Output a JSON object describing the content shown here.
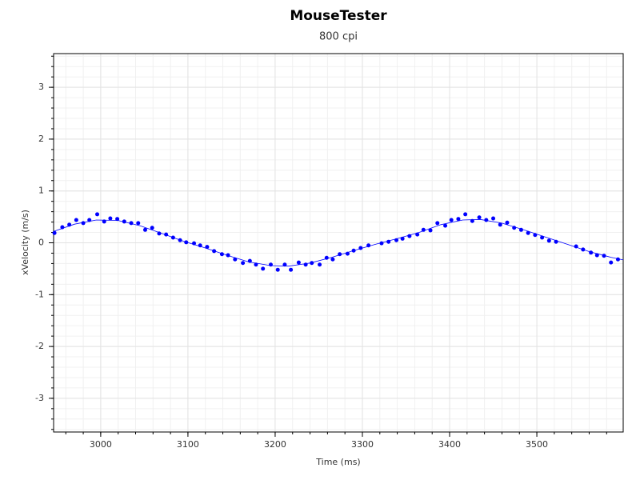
{
  "chart_data": {
    "type": "scatter",
    "title": "MouseTester",
    "subtitle": "800 cpi",
    "xlabel": "Time (ms)",
    "ylabel": "xVelocity (m/s)",
    "xlim": [
      2946,
      3599
    ],
    "ylim": [
      -3.65,
      3.65
    ],
    "xticks": [
      3000,
      3100,
      3200,
      3300,
      3400,
      3500
    ],
    "yticks": [
      -3,
      -2,
      -1,
      0,
      1,
      2,
      3
    ],
    "xminorstep": 20,
    "yminorstep": 0.2,
    "grid": true,
    "series": [
      {
        "type": "scatter",
        "color": "#0000ff",
        "x": [
          2947,
          2956,
          2964,
          2972,
          2980,
          2987,
          2996,
          3004,
          3011,
          3019,
          3027,
          3035,
          3043,
          3051,
          3059,
          3067,
          3075,
          3083,
          3091,
          3098,
          3107,
          3114,
          3122,
          3130,
          3139,
          3146,
          3154,
          3163,
          3171,
          3178,
          3186,
          3195,
          3203,
          3211,
          3218,
          3227,
          3235,
          3242,
          3251,
          3259,
          3266,
          3274,
          3283,
          3290,
          3298,
          3307,
          3322,
          3330,
          3339,
          3346,
          3354,
          3363,
          3370,
          3378,
          3386,
          3395,
          3402,
          3410,
          3418,
          3426,
          3434,
          3442,
          3450,
          3458,
          3466,
          3474,
          3482,
          3490,
          3498,
          3506,
          3514,
          3522,
          3545,
          3553,
          3562,
          3569,
          3577,
          3585,
          3593
        ],
        "values": [
          0.19,
          0.3,
          0.35,
          0.44,
          0.38,
          0.44,
          0.55,
          0.41,
          0.47,
          0.46,
          0.41,
          0.38,
          0.38,
          0.25,
          0.29,
          0.18,
          0.16,
          0.1,
          0.05,
          0.01,
          -0.01,
          -0.05,
          -0.08,
          -0.16,
          -0.22,
          -0.24,
          -0.32,
          -0.39,
          -0.35,
          -0.42,
          -0.5,
          -0.42,
          -0.52,
          -0.42,
          -0.52,
          -0.38,
          -0.42,
          -0.39,
          -0.42,
          -0.29,
          -0.32,
          -0.22,
          -0.21,
          -0.15,
          -0.1,
          -0.05,
          -0.01,
          0.02,
          0.05,
          0.08,
          0.13,
          0.16,
          0.25,
          0.24,
          0.38,
          0.33,
          0.44,
          0.46,
          0.55,
          0.42,
          0.49,
          0.44,
          0.47,
          0.35,
          0.39,
          0.29,
          0.25,
          0.19,
          0.15,
          0.1,
          0.04,
          0.02,
          -0.07,
          -0.13,
          -0.19,
          -0.24,
          -0.25,
          -0.38,
          -0.32
        ]
      },
      {
        "type": "line",
        "color": "#0000ff",
        "x": [
          2946,
          2970,
          2995,
          3020,
          3045,
          3070,
          3095,
          3120,
          3145,
          3170,
          3195,
          3215,
          3240,
          3265,
          3290,
          3315,
          3340,
          3365,
          3390,
          3415,
          3435,
          3460,
          3485,
          3510,
          3535,
          3560,
          3585,
          3599
        ],
        "values": [
          0.22,
          0.36,
          0.44,
          0.43,
          0.33,
          0.18,
          0.03,
          -0.1,
          -0.24,
          -0.37,
          -0.44,
          -0.45,
          -0.39,
          -0.28,
          -0.15,
          -0.03,
          0.08,
          0.2,
          0.35,
          0.44,
          0.45,
          0.38,
          0.25,
          0.11,
          -0.03,
          -0.17,
          -0.28,
          -0.33
        ]
      }
    ]
  }
}
